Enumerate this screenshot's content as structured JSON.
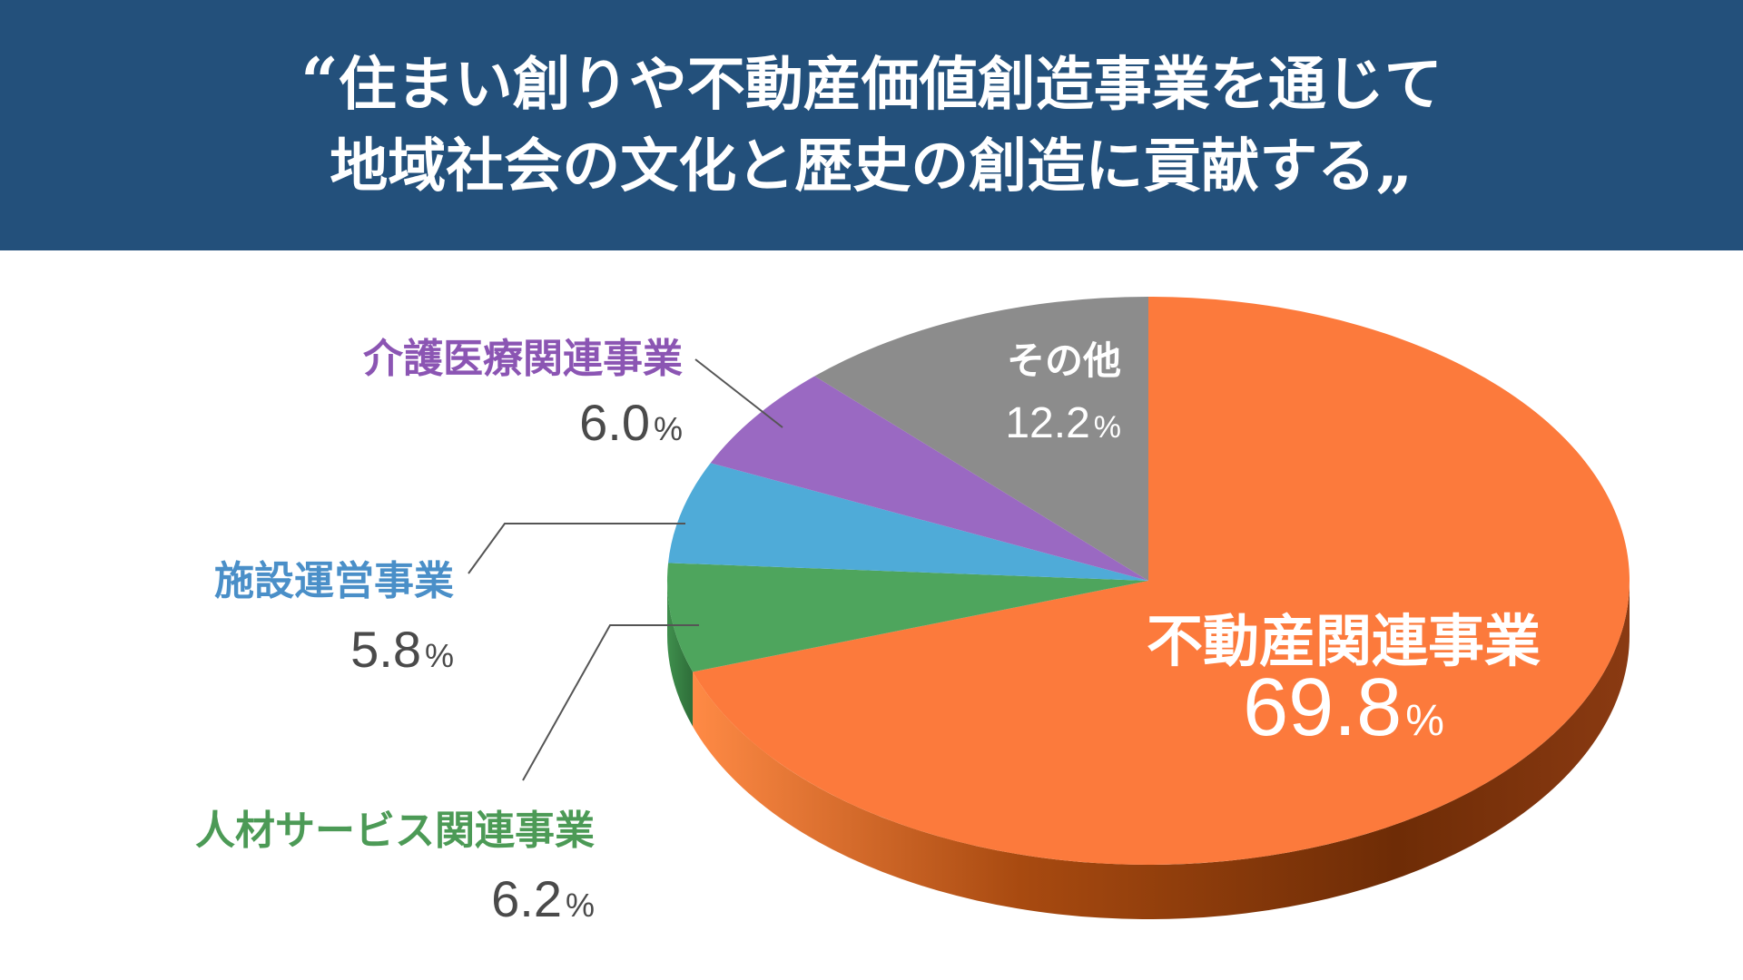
{
  "banner": {
    "open_quote": "“",
    "line1": "住まい創りや不動産価値創造事業を通じて",
    "line2": "地域社会の文化と歴史の創造に貢献する",
    "close_quote": "„"
  },
  "colors": {
    "banner": "#23507b",
    "real_estate": "#fc7a3c",
    "hr": "#4ea55d",
    "facility": "#4fabd8",
    "care": "#9a69c2",
    "other": "#8c8c8c",
    "leader": "#555555",
    "value_text": "#4a4a4a"
  },
  "chart_data": {
    "type": "pie",
    "unit": "%",
    "slices": [
      {
        "label": "不動産関連事業",
        "value": 69.8,
        "value_text": "69.8",
        "color": "#fc7a3c",
        "side_color": "#b04a15",
        "label_color": "#ffffff",
        "value_color": "#ffffff"
      },
      {
        "label": "人材サービス関連事業",
        "value": 6.2,
        "value_text": "6.2",
        "color": "#4ea55d",
        "side_color": "#2f7a3c",
        "label_color": "#4c9a56",
        "value_color": "#4a4a4a"
      },
      {
        "label": "施設運営事業",
        "value": 5.8,
        "value_text": "5.8",
        "color": "#4fabd8",
        "side_color": "#2f7fa8",
        "label_color": "#4a8fc8",
        "value_color": "#4a4a4a"
      },
      {
        "label": "介護医療関連事業",
        "value": 6.0,
        "value_text": "6.0",
        "color": "#9a69c2",
        "side_color": "#6f4594",
        "label_color": "#8b55b3",
        "value_color": "#4a4a4a"
      },
      {
        "label": "その他",
        "value": 12.2,
        "value_text": "12.2",
        "color": "#8c8c8c",
        "side_color": "#606060",
        "label_color": "#ffffff",
        "value_color": "#ffffff"
      }
    ]
  }
}
